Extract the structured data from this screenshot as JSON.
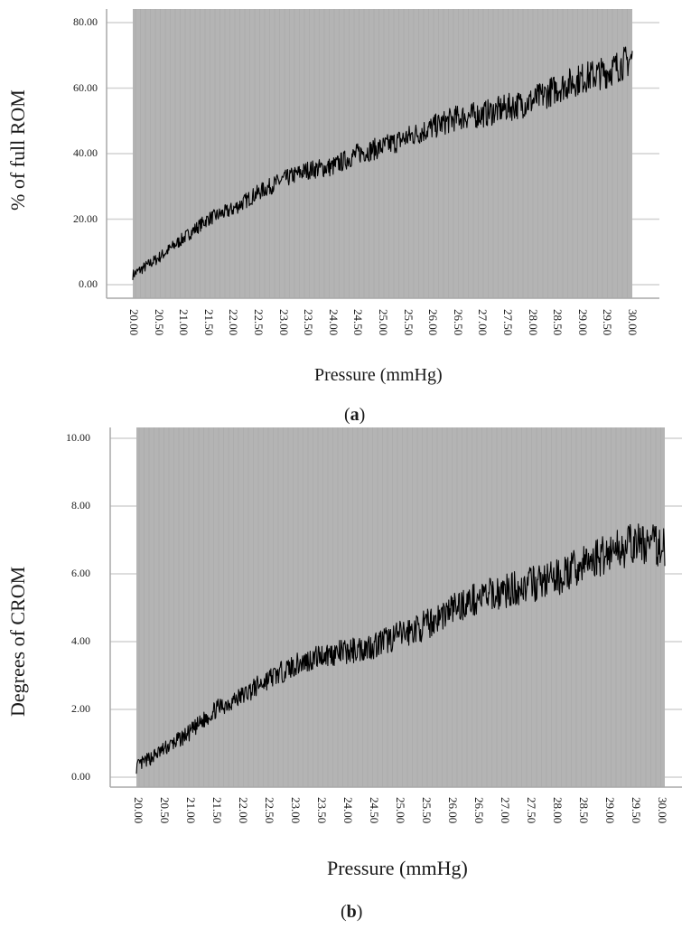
{
  "figures": [
    {
      "id": "a",
      "caption_letter": "a",
      "ylabel": "% of full ROM",
      "xlabel": "Pressure (mmHg)"
    },
    {
      "id": "b",
      "caption_letter": "b",
      "ylabel": "Degrees of CROM",
      "xlabel": "Pressure (mmHg)"
    }
  ],
  "colors": {
    "plot_background": "#b4b4b4",
    "grid_line": "#d2d2d2",
    "axis_line": "#a8a8a8",
    "series": "#000000",
    "stripe": "#a9a9a9"
  },
  "chart_data": [
    {
      "type": "line",
      "title": "(a)",
      "xlabel": "Pressure (mmHg)",
      "ylabel": "% of full ROM",
      "xlim": [
        20.0,
        30.0
      ],
      "ylim": [
        0,
        80
      ],
      "xticks": [
        "20.00",
        "20.50",
        "21.00",
        "21.50",
        "22.00",
        "22.50",
        "23.00",
        "23.50",
        "24.00",
        "24.50",
        "25.00",
        "25.50",
        "26.00",
        "26.50",
        "27.00",
        "27.50",
        "28.00",
        "28.50",
        "29.00",
        "29.50",
        "30.00"
      ],
      "yticks": [
        "0.00",
        "20.00",
        "40.00",
        "60.00",
        "80.00"
      ],
      "grid": "horizontal",
      "legend": "none",
      "series": [
        {
          "name": "% of full ROM",
          "x": [
            20.0,
            20.5,
            21.0,
            21.5,
            22.0,
            22.5,
            23.0,
            23.5,
            24.0,
            24.5,
            25.0,
            25.5,
            26.0,
            26.5,
            27.0,
            27.5,
            28.0,
            28.5,
            29.0,
            29.5,
            30.0
          ],
          "values": [
            3,
            8,
            14,
            20,
            23,
            28,
            32,
            35,
            36,
            40,
            42,
            45,
            48,
            51,
            52,
            54,
            56,
            60,
            63,
            65,
            69
          ],
          "noise_amplitude": 4
        }
      ]
    },
    {
      "type": "line",
      "title": "(b)",
      "xlabel": "Pressure (mmHg)",
      "ylabel": "Degrees of CROM",
      "xlim": [
        20.0,
        30.0
      ],
      "ylim": [
        0,
        10
      ],
      "xticks": [
        "20.00",
        "20.50",
        "21.00",
        "21.50",
        "22.00",
        "22.50",
        "23.00",
        "23.50",
        "24.00",
        "24.50",
        "25.00",
        "25.50",
        "26.00",
        "26.50",
        "27.00",
        "27.50",
        "28.00",
        "28.50",
        "29.00",
        "29.50",
        "30.00"
      ],
      "yticks": [
        "0.00",
        "2.00",
        "4.00",
        "6.00",
        "8.00",
        "10.00"
      ],
      "grid": "horizontal",
      "legend": "none",
      "series": [
        {
          "name": "Degrees of CROM",
          "x": [
            20.0,
            20.5,
            21.0,
            21.5,
            22.0,
            22.5,
            23.0,
            23.5,
            24.0,
            24.5,
            25.0,
            25.5,
            26.0,
            26.5,
            27.0,
            27.5,
            28.0,
            28.5,
            29.0,
            29.5,
            30.0
          ],
          "values": [
            0.3,
            0.8,
            1.3,
            2.0,
            2.4,
            2.9,
            3.3,
            3.6,
            3.7,
            3.9,
            4.2,
            4.5,
            5.0,
            5.3,
            5.5,
            5.7,
            5.9,
            6.3,
            6.7,
            6.9,
            6.8
          ],
          "noise_amplitude": 0.5
        }
      ]
    }
  ]
}
